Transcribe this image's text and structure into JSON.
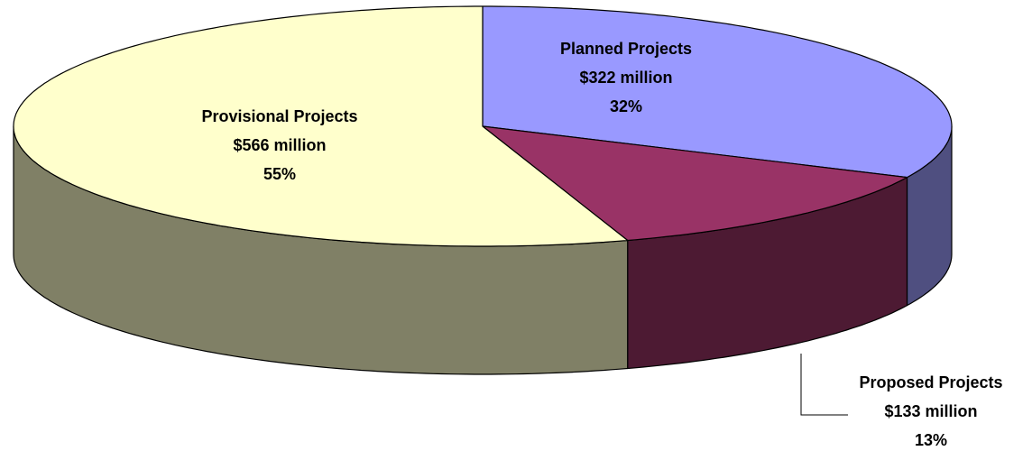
{
  "chart_data": {
    "type": "pie",
    "categories": [
      "Planned Projects",
      "Proposed Projects",
      "Provisional Projects"
    ],
    "values": [
      32,
      13,
      55
    ],
    "value_labels": [
      "32%",
      "13%",
      "55%"
    ],
    "amounts": [
      322,
      133,
      566
    ],
    "amount_labels": [
      "$322 million",
      "$133 million",
      "$566 million"
    ],
    "colors": [
      "#9999ff",
      "#993366",
      "#ffffcc"
    ],
    "side_colors": [
      "#4f4f80",
      "#4d1a33",
      "#808066"
    ]
  }
}
